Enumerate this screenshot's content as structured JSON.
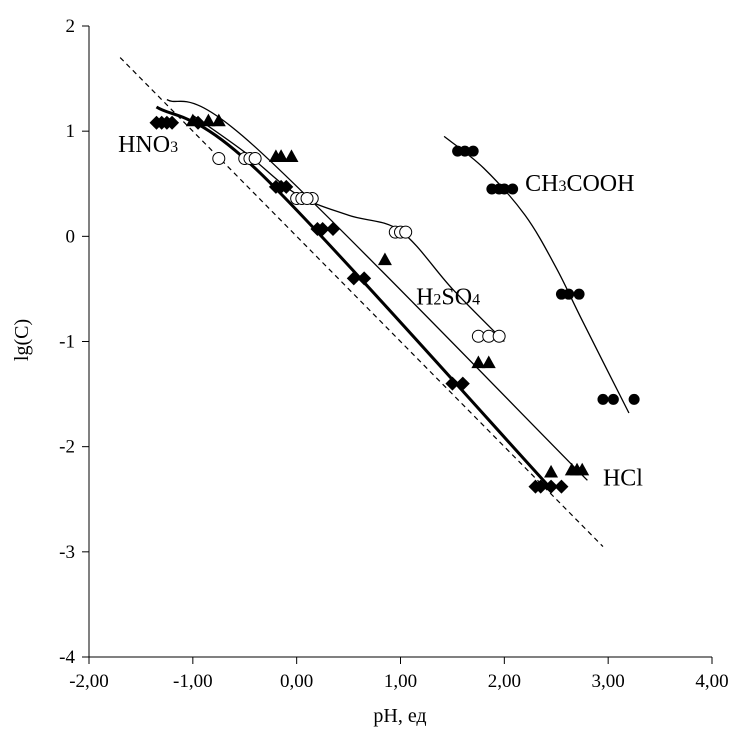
{
  "chart_data": {
    "type": "scatter",
    "title": "",
    "xlabel": "pH, ед",
    "ylabel": "lg(C)",
    "xlim": [
      -2,
      4
    ],
    "ylim": [
      -4,
      2
    ],
    "x_ticks": [
      "-2,00",
      "-1,00",
      "0,00",
      "1,00",
      "2,00",
      "3,00",
      "4,00"
    ],
    "y_ticks": [
      "-4",
      "-3",
      "-2",
      "-1",
      "0",
      "1",
      "2"
    ],
    "grid": false,
    "legend": "none",
    "series": [
      {
        "name": "HNO3",
        "marker": "diamond",
        "points": [
          {
            "x": -1.35,
            "y": 1.08
          },
          {
            "x": -1.3,
            "y": 1.08
          },
          {
            "x": -1.25,
            "y": 1.08
          },
          {
            "x": -1.2,
            "y": 1.08
          },
          {
            "x": -0.95,
            "y": 1.08
          },
          {
            "x": -0.2,
            "y": 0.47
          },
          {
            "x": -0.15,
            "y": 0.47
          },
          {
            "x": -0.1,
            "y": 0.47
          },
          {
            "x": 0.2,
            "y": 0.07
          },
          {
            "x": 0.25,
            "y": 0.07
          },
          {
            "x": 0.35,
            "y": 0.07
          },
          {
            "x": 0.55,
            "y": -0.4
          },
          {
            "x": 0.65,
            "y": -0.4
          },
          {
            "x": 1.5,
            "y": -1.4
          },
          {
            "x": 1.6,
            "y": -1.4
          },
          {
            "x": 2.3,
            "y": -2.38
          },
          {
            "x": 2.35,
            "y": -2.38
          },
          {
            "x": 2.45,
            "y": -2.38
          },
          {
            "x": 2.55,
            "y": -2.38
          }
        ],
        "curve": [
          {
            "x": -1.35,
            "y": 1.23
          },
          {
            "x": -0.35,
            "y": 0.6
          },
          {
            "x": 2.45,
            "y": -2.4
          }
        ]
      },
      {
        "name": "HCl",
        "marker": "triangle",
        "points": [
          {
            "x": -1.0,
            "y": 1.1
          },
          {
            "x": -0.85,
            "y": 1.1
          },
          {
            "x": -0.75,
            "y": 1.1
          },
          {
            "x": -0.2,
            "y": 0.76
          },
          {
            "x": -0.15,
            "y": 0.76
          },
          {
            "x": -0.05,
            "y": 0.76
          },
          {
            "x": -0.15,
            "y": 0.76
          },
          {
            "x": 0.85,
            "y": -0.22
          },
          {
            "x": 1.75,
            "y": -1.2
          },
          {
            "x": 1.85,
            "y": -1.2
          },
          {
            "x": 2.45,
            "y": -2.24
          },
          {
            "x": 2.65,
            "y": -2.22
          },
          {
            "x": 2.7,
            "y": -2.22
          },
          {
            "x": 2.75,
            "y": -2.22
          }
        ],
        "curve": [
          {
            "x": -1.25,
            "y": 1.3
          },
          {
            "x": -0.4,
            "y": 0.85
          },
          {
            "x": 2.8,
            "y": -2.32
          }
        ]
      },
      {
        "name": "H2SO4",
        "marker": "circle-open",
        "points": [
          {
            "x": -0.75,
            "y": 0.74
          },
          {
            "x": -0.5,
            "y": 0.74
          },
          {
            "x": -0.45,
            "y": 0.74
          },
          {
            "x": -0.4,
            "y": 0.74
          },
          {
            "x": 0.0,
            "y": 0.36
          },
          {
            "x": 0.05,
            "y": 0.36
          },
          {
            "x": 0.15,
            "y": 0.36
          },
          {
            "x": 0.1,
            "y": 0.36
          },
          {
            "x": 0.95,
            "y": 0.04
          },
          {
            "x": 1.0,
            "y": 0.04
          },
          {
            "x": 1.05,
            "y": 0.04
          },
          {
            "x": 1.75,
            "y": -0.95
          },
          {
            "x": 1.85,
            "y": -0.95
          },
          {
            "x": 1.95,
            "y": -0.95
          }
        ],
        "curve": [
          {
            "x": -1.0,
            "y": 1.15
          },
          {
            "x": -0.5,
            "y": 0.8
          },
          {
            "x": 0.0,
            "y": 0.4
          },
          {
            "x": 0.5,
            "y": 0.2
          },
          {
            "x": 1.0,
            "y": 0.05
          },
          {
            "x": 1.5,
            "y": -0.5
          },
          {
            "x": 2.0,
            "y": -1.0
          }
        ]
      },
      {
        "name": "CH3COOH",
        "marker": "circle-filled",
        "points": [
          {
            "x": 1.55,
            "y": 0.81
          },
          {
            "x": 1.62,
            "y": 0.81
          },
          {
            "x": 1.7,
            "y": 0.81
          },
          {
            "x": 1.88,
            "y": 0.45
          },
          {
            "x": 1.95,
            "y": 0.45
          },
          {
            "x": 2.0,
            "y": 0.45
          },
          {
            "x": 2.08,
            "y": 0.45
          },
          {
            "x": 2.55,
            "y": -0.55
          },
          {
            "x": 2.62,
            "y": -0.55
          },
          {
            "x": 2.72,
            "y": -0.55
          },
          {
            "x": 2.95,
            "y": -1.55
          },
          {
            "x": 3.05,
            "y": -1.55
          },
          {
            "x": 3.25,
            "y": -1.55
          }
        ],
        "curve": [
          {
            "x": 1.42,
            "y": 0.95
          },
          {
            "x": 1.8,
            "y": 0.65
          },
          {
            "x": 2.2,
            "y": 0.2
          },
          {
            "x": 2.5,
            "y": -0.3
          },
          {
            "x": 2.75,
            "y": -0.8
          },
          {
            "x": 3.2,
            "y": -1.68
          }
        ]
      }
    ],
    "reference_line": {
      "style": "dashed",
      "points": [
        {
          "x": -1.7,
          "y": 1.7
        },
        {
          "x": 2.95,
          "y": -2.95
        }
      ]
    },
    "annotations": [
      {
        "text": "HNO3",
        "main": "HNO",
        "sub": "3",
        "x": -1.72,
        "y": 0.8
      },
      {
        "text": "CH3COOH",
        "pre": "CH",
        "sub": "3",
        "post": "COOH",
        "x": 2.2,
        "y": 0.43
      },
      {
        "text": "H2SO4",
        "pre": "H",
        "sub": "2",
        "mid": "SO",
        "sub2": "4",
        "x": 1.15,
        "y": -0.65
      },
      {
        "text": "HCl",
        "pre": "HCl",
        "x": 2.95,
        "y": -2.37
      }
    ]
  }
}
